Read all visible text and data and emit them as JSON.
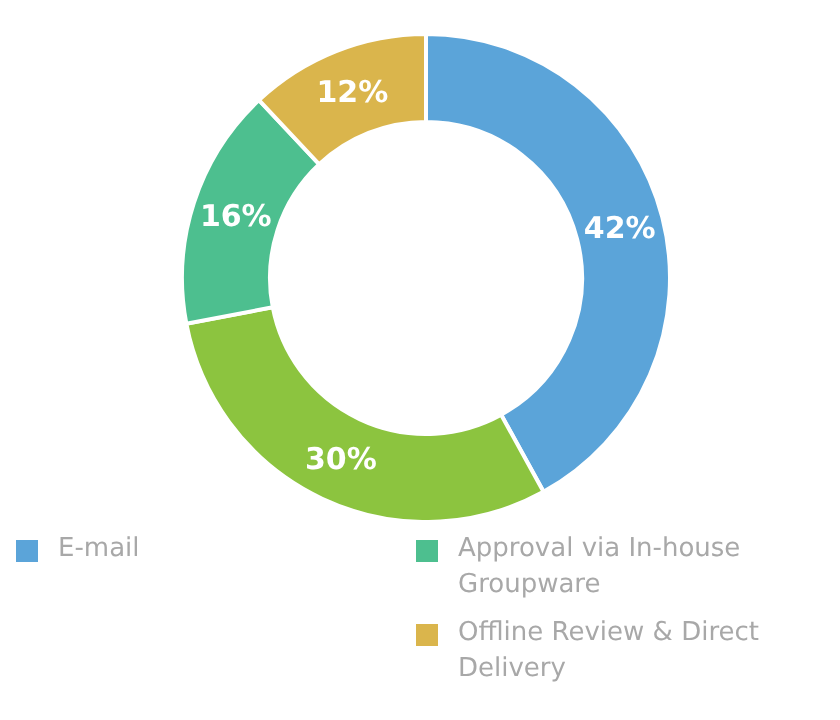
{
  "chart_data": {
    "type": "donut",
    "categories": [
      "E-mail",
      null,
      "Approval via In-house Groupware",
      "Offline Review & Direct Delivery"
    ],
    "values": [
      42,
      30,
      16,
      12
    ],
    "colors": [
      "#5ba4d9",
      "#8cc43f",
      "#4dbf8f",
      "#dab54c"
    ],
    "value_labels": [
      "42%",
      "30%",
      "16%",
      "12%"
    ],
    "legend": "bottom"
  }
}
